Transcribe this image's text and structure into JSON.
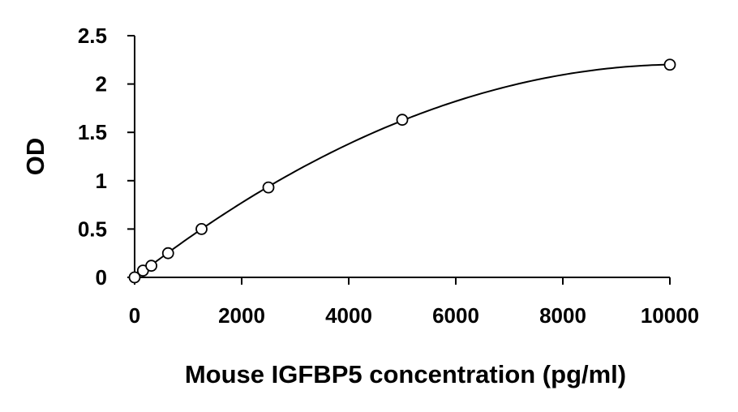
{
  "chart_data": {
    "type": "scatter",
    "title": "",
    "xlabel": "Mouse IGFBP5 concentration (pg/ml)",
    "ylabel": "OD",
    "xlim": [
      0,
      10000
    ],
    "ylim": [
      0,
      2.5
    ],
    "x_ticks": [
      0,
      2000,
      4000,
      6000,
      8000,
      10000
    ],
    "y_ticks": [
      0,
      0.5,
      1,
      1.5,
      2,
      2.5
    ],
    "x_tick_labels": [
      "0",
      "2000",
      "4000",
      "6000",
      "8000",
      "10000"
    ],
    "y_tick_labels": [
      "0",
      "0.5",
      "1",
      "1.5",
      "2",
      "2.5"
    ],
    "grid": false,
    "legend": "none",
    "series": [
      {
        "x": [
          0,
          156,
          312,
          625,
          1250,
          2500,
          5000,
          10000
        ],
        "y": [
          0.0,
          0.07,
          0.12,
          0.25,
          0.5,
          0.93,
          1.63,
          2.2
        ],
        "marker": "open-circle",
        "trendline": "polynomial"
      }
    ],
    "colors": {
      "line": "#000000",
      "marker_fill": "#ffffff",
      "marker_stroke": "#000000"
    }
  }
}
